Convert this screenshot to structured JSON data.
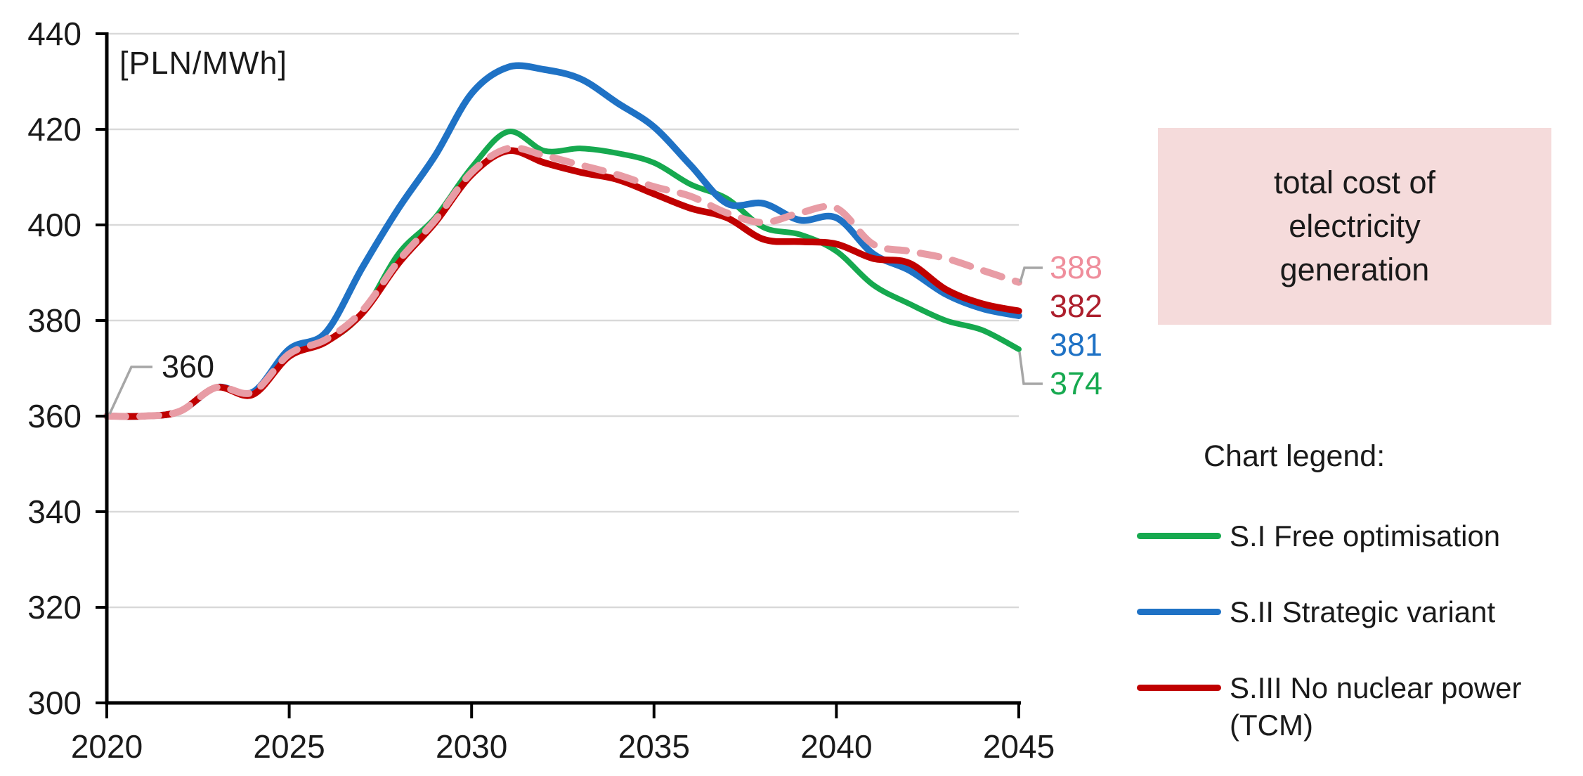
{
  "chart_data": {
    "type": "line",
    "unit_label": "[PLN/MWh]",
    "xlim": [
      2020,
      2045
    ],
    "ylim": [
      300,
      440
    ],
    "x_ticks": [
      2020,
      2025,
      2030,
      2035,
      2040,
      2045
    ],
    "y_ticks": [
      300,
      320,
      340,
      360,
      380,
      400,
      420,
      440
    ],
    "grid": "horizontal",
    "x": [
      2020,
      2021,
      2022,
      2023,
      2024,
      2025,
      2026,
      2027,
      2028,
      2029,
      2030,
      2031,
      2032,
      2033,
      2034,
      2035,
      2036,
      2037,
      2038,
      2039,
      2040,
      2041,
      2042,
      2043,
      2044,
      2045
    ],
    "series": [
      {
        "name": "S.I Free optimisation",
        "color": "#16A94F",
        "style": "solid",
        "values": [
          360,
          360,
          361,
          366,
          364.5,
          373,
          375.5,
          381.5,
          394,
          401.5,
          412,
          419.5,
          415.5,
          416,
          415,
          413,
          408.5,
          405.5,
          399.5,
          398,
          394.5,
          387.5,
          383.5,
          380,
          378,
          374
        ]
      },
      {
        "name": "S.II Strategic variant",
        "color": "#1F72C5",
        "style": "solid",
        "values": [
          360,
          360,
          361,
          366,
          365,
          374,
          377.5,
          391,
          403.5,
          414.5,
          427.5,
          433,
          432.5,
          430.5,
          425.5,
          420.5,
          412.5,
          404.5,
          404.5,
          401,
          401.5,
          394,
          390.5,
          385.5,
          382.5,
          381
        ]
      },
      {
        "name": "S.III No nuclear power (TCM)",
        "color": "#C00000",
        "style": "solid",
        "values": [
          360,
          360,
          361,
          366,
          364.5,
          372.5,
          375.5,
          381.5,
          392,
          400.5,
          410.5,
          415.5,
          413,
          411,
          409.5,
          406.5,
          403.5,
          401.5,
          397,
          396.5,
          396,
          393,
          392,
          386.5,
          383.5,
          382
        ]
      },
      {
        "name": "",
        "color": "#E89CA5",
        "style": "dashed",
        "values": [
          360,
          360,
          361,
          366,
          365,
          373,
          376,
          382,
          392.5,
          401,
          411,
          416,
          414.5,
          412.5,
          410.5,
          408,
          406,
          402.5,
          400.5,
          402.5,
          403.5,
          396,
          394.5,
          393,
          390.5,
          388
        ]
      }
    ],
    "annotations": {
      "start_label": {
        "text": "360",
        "color": "#1a1a1a"
      },
      "end_labels": [
        {
          "text": "388",
          "color": "#EF8E9C"
        },
        {
          "text": "382",
          "color": "#AD1F2D"
        },
        {
          "text": "381",
          "color": "#1F72C5"
        },
        {
          "text": "374",
          "color": "#16A94F"
        }
      ]
    }
  },
  "panel": {
    "box_text_lines": [
      "total cost of",
      "electricity",
      "generation"
    ],
    "box_color": "#F5DBDB",
    "legend_title": "Chart legend:",
    "legend_items": [
      {
        "lines": [
          "S.I Free optimisation"
        ],
        "color": "#16A94F"
      },
      {
        "lines": [
          "S.II Strategic variant"
        ],
        "color": "#1F72C5"
      },
      {
        "lines": [
          "S.III No nuclear power",
          "(TCM)"
        ],
        "color": "#C00000"
      }
    ]
  }
}
